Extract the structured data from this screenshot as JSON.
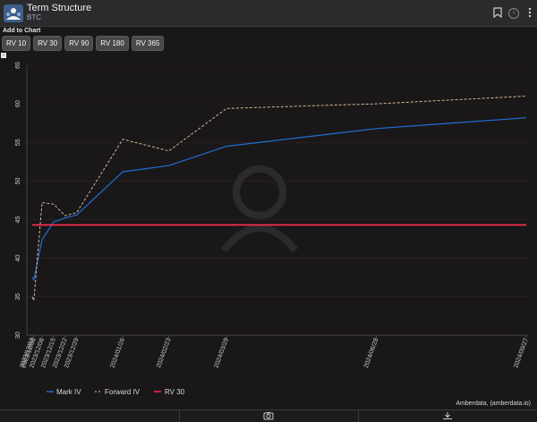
{
  "header": {
    "title": "Term Structure",
    "subtitle": "BTC",
    "info_label": "i"
  },
  "add_to_chart": {
    "label": "Add to Chart",
    "buttons": [
      "RV 10",
      "RV 30",
      "RV 90",
      "RV 180",
      "RV 365"
    ]
  },
  "colors": {
    "mark_iv": "#1f6fd6",
    "forward_iv": "#e3c7a6",
    "rv30": "#ff2e4f",
    "grid": "#2a2728"
  },
  "attribution": "Amberdata, (amberdata.io)",
  "chart_data": {
    "type": "line",
    "ylim": [
      30,
      65
    ],
    "yticks": [
      30,
      35,
      40,
      45,
      50,
      55,
      60,
      65
    ],
    "x": [
      "2023-12-02",
      "2023-12-03",
      "2023-12-08",
      "2023-12-15",
      "2023-12-22",
      "2023-12-29",
      "2024-01-26",
      "2024-02-23",
      "2024-03-29",
      "2024-06-28",
      "2024-09-27"
    ],
    "xtick_labels": [
      "2023/12/02",
      "2023/12/03",
      "2023/12/08",
      "2023/12/15",
      "2023/12/22",
      "2023/12/29",
      "2024/01/26",
      "2024/02/23",
      "2024/03/29",
      "2024/06/28",
      "2024/09/27"
    ],
    "series": [
      {
        "name": "Mark IV",
        "style": "solid",
        "values": [
          37.5,
          37.2,
          42.4,
          44.7,
          45.2,
          45.6,
          51.2,
          52.0,
          54.5,
          56.8,
          58.2
        ]
      },
      {
        "name": "Forward IV",
        "style": "dashed",
        "values": [
          35.0,
          34.5,
          47.2,
          47.0,
          45.5,
          45.9,
          55.4,
          53.9,
          59.4,
          60.0,
          61.0
        ]
      },
      {
        "name": "RV 30",
        "style": "solid",
        "values": [
          44.3,
          44.3,
          44.3,
          44.3,
          44.3,
          44.3,
          44.3,
          44.3,
          44.3,
          44.3,
          44.3
        ]
      }
    ],
    "legend": {
      "position": "bottom-left",
      "entries": [
        "Mark IV",
        "Forward IV",
        "RV 30"
      ]
    }
  }
}
